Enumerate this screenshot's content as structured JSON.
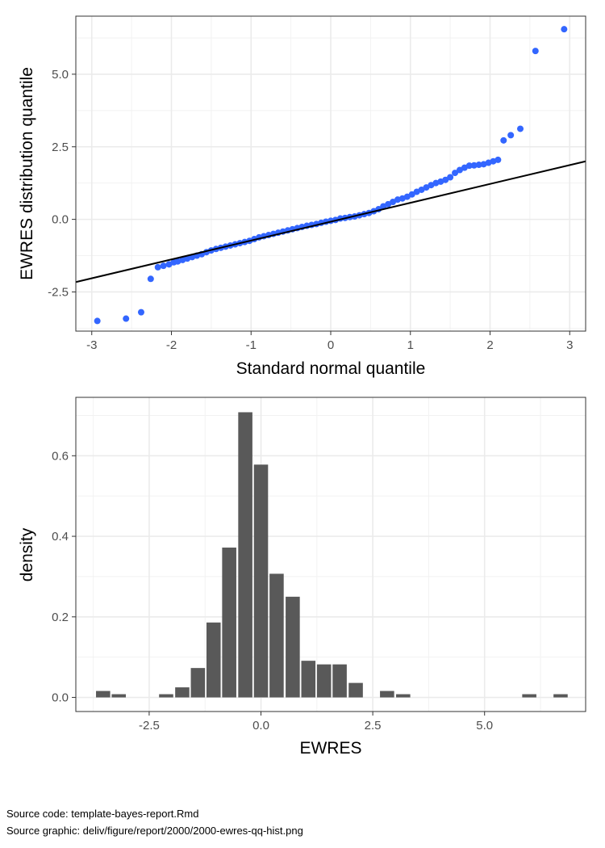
{
  "chart_data": [
    {
      "type": "scatter",
      "title": "",
      "xlabel": "Standard normal quantile",
      "ylabel": "EWRES distribution quantile",
      "xlim": [
        -3.2,
        3.2
      ],
      "ylim": [
        -3.85,
        7.0
      ],
      "x_ticks": [
        -3,
        -2,
        -1,
        0,
        1,
        2,
        3
      ],
      "x_tick_labels": [
        "-3",
        "-2",
        "-1",
        "0",
        "1",
        "2",
        "3"
      ],
      "y_ticks": [
        -2.5,
        0.0,
        2.5,
        5.0
      ],
      "y_tick_labels": [
        "-2.5",
        "0.0",
        "2.5",
        "5.0"
      ],
      "grid": true,
      "point_color": "#3366FF",
      "reference_line": {
        "intercept": -0.08,
        "slope": 0.65,
        "color": "#000000"
      },
      "points": {
        "x": [
          -2.93,
          -2.57,
          -2.38,
          -2.26,
          -2.17,
          -2.1,
          -2.03,
          -1.97,
          -1.92,
          -1.86,
          -1.8,
          -1.74,
          -1.68,
          -1.62,
          -1.56,
          -1.5,
          -1.44,
          -1.38,
          -1.32,
          -1.26,
          -1.2,
          -1.14,
          -1.08,
          -1.02,
          -0.96,
          -0.9,
          -0.84,
          -0.78,
          -0.72,
          -0.66,
          -0.6,
          -0.54,
          -0.48,
          -0.42,
          -0.36,
          -0.3,
          -0.24,
          -0.18,
          -0.12,
          -0.06,
          0.0,
          0.06,
          0.12,
          0.18,
          0.24,
          0.3,
          0.36,
          0.42,
          0.48,
          0.54,
          0.6,
          0.66,
          0.72,
          0.78,
          0.84,
          0.9,
          0.96,
          1.02,
          1.08,
          1.14,
          1.2,
          1.26,
          1.32,
          1.38,
          1.44,
          1.5,
          1.56,
          1.62,
          1.68,
          1.74,
          1.8,
          1.86,
          1.92,
          1.98,
          2.04,
          2.1,
          2.17,
          2.26,
          2.38,
          2.57,
          2.93
        ],
        "y": [
          -3.5,
          -3.42,
          -3.2,
          -2.05,
          -1.65,
          -1.6,
          -1.55,
          -1.48,
          -1.45,
          -1.4,
          -1.35,
          -1.3,
          -1.25,
          -1.2,
          -1.13,
          -1.07,
          -1.02,
          -0.98,
          -0.94,
          -0.9,
          -0.86,
          -0.82,
          -0.78,
          -0.74,
          -0.68,
          -0.62,
          -0.58,
          -0.54,
          -0.5,
          -0.46,
          -0.42,
          -0.38,
          -0.34,
          -0.3,
          -0.26,
          -0.22,
          -0.19,
          -0.16,
          -0.12,
          -0.08,
          -0.05,
          -0.02,
          0.03,
          0.05,
          0.08,
          0.1,
          0.14,
          0.18,
          0.22,
          0.28,
          0.35,
          0.45,
          0.52,
          0.6,
          0.68,
          0.72,
          0.78,
          0.86,
          0.95,
          1.02,
          1.1,
          1.18,
          1.25,
          1.3,
          1.36,
          1.45,
          1.6,
          1.7,
          1.78,
          1.85,
          1.86,
          1.88,
          1.9,
          1.95,
          2.0,
          2.05,
          2.72,
          2.9,
          3.12,
          5.8,
          6.55
        ]
      }
    },
    {
      "type": "bar",
      "title": "",
      "xlabel": "EWRES",
      "ylabel": "density",
      "xlim": [
        -4.14,
        7.26
      ],
      "ylim": [
        -0.035,
        0.745
      ],
      "x_ticks": [
        -2.5,
        0.0,
        2.5,
        5.0
      ],
      "x_tick_labels": [
        "-2.5",
        "0.0",
        "2.5",
        "5.0"
      ],
      "y_ticks": [
        0.0,
        0.2,
        0.4,
        0.6
      ],
      "y_tick_labels": [
        "0.0",
        "0.2",
        "0.4",
        "0.6"
      ],
      "grid": true,
      "bar_color": "#595959",
      "bin_width": 0.353,
      "bin_centers": [
        -3.53,
        -3.18,
        -2.82,
        -2.47,
        -2.12,
        -1.76,
        -1.41,
        -1.06,
        -0.71,
        -0.35,
        0.0,
        0.35,
        0.71,
        1.06,
        1.41,
        1.76,
        2.12,
        2.47,
        2.82,
        3.18,
        3.53,
        3.88,
        4.23,
        4.59,
        4.94,
        5.29,
        5.65,
        6.0,
        6.35,
        6.7
      ],
      "values": [
        0.016,
        0.008,
        0.0,
        0.0,
        0.008,
        0.025,
        0.073,
        0.186,
        0.372,
        0.708,
        0.578,
        0.307,
        0.25,
        0.091,
        0.082,
        0.082,
        0.036,
        0.0,
        0.016,
        0.008,
        0.0,
        0.0,
        0.0,
        0.0,
        0.0,
        0.0,
        0.0,
        0.008,
        0.0,
        0.008
      ]
    }
  ],
  "footer": {
    "line1": "Source code: template-bayes-report.Rmd",
    "line2": "Source graphic: deliv/figure/report/2000/2000-ewres-qq-hist.png"
  }
}
